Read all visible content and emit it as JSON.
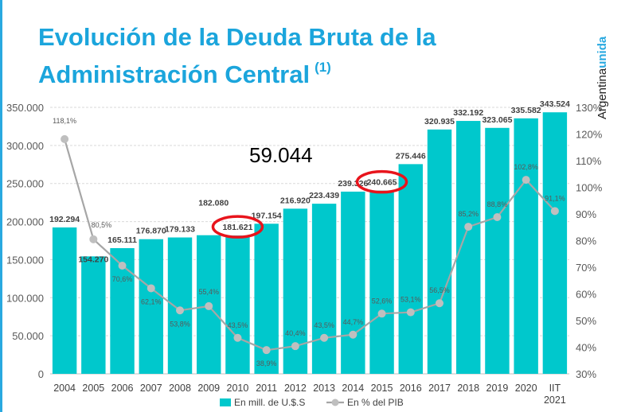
{
  "title_line1": "Evolución de la Deuda Bruta de la",
  "title_line2": "Administración Central",
  "title_note": "(1)",
  "brand": {
    "part1": "Argentina",
    "part2": "unida"
  },
  "annotation": "59.044",
  "colors": {
    "bars": "#00c8cc",
    "line": "#a6a6a6",
    "title": "#1ba5dc",
    "highlight": "#e8141c"
  },
  "chart_data": {
    "type": "bar+line",
    "categories": [
      "2004",
      "2005",
      "2006",
      "2007",
      "2008",
      "2009",
      "2010",
      "2011",
      "2012",
      "2013",
      "2014",
      "2015",
      "2016",
      "2017",
      "2018",
      "2019",
      "2020",
      "IIT 2021"
    ],
    "series": [
      {
        "name": "En mill. de U.$.S",
        "type": "bar",
        "axis": "left",
        "values": [
          192294,
          154270,
          165111,
          176870,
          179133,
          182080,
          181621,
          197154,
          216920,
          223439,
          239326,
          240665,
          275446,
          320935,
          332192,
          323065,
          335582,
          343524
        ],
        "labels": [
          "192.294",
          "154.270",
          "165.111",
          "176.870",
          "179.133",
          "182.080",
          "181.621",
          "197.154",
          "216.920",
          "223.439",
          "239.326",
          "240.665",
          "275.446",
          "320.935",
          "332.192",
          "323.065",
          "335.582",
          "343.524"
        ]
      },
      {
        "name": "En % del PIB",
        "type": "line",
        "axis": "right",
        "values": [
          118.1,
          80.5,
          70.6,
          62.1,
          53.8,
          55.4,
          43.5,
          38.9,
          40.4,
          43.5,
          44.7,
          52.6,
          53.1,
          56.5,
          85.2,
          88.8,
          102.8,
          91.1
        ],
        "labels": [
          "118,1%",
          "80,5%",
          "70,6%",
          "62,1%",
          "53,8%",
          "55,4%",
          "43,5%",
          "38,9%",
          "40,4%",
          "43,5%",
          "44,7%",
          "52,6%",
          "53,1%",
          "56,5%",
          "85,2%",
          "88,8%",
          "102,8%",
          "91,1%"
        ]
      }
    ],
    "left_axis": {
      "range": [
        0,
        350000
      ],
      "ticks": [
        "0",
        "50.000",
        "100.000",
        "150.000",
        "200.000",
        "250.000",
        "300.000",
        "350.000"
      ]
    },
    "right_axis": {
      "range": [
        30,
        130
      ],
      "ticks": [
        "30%",
        "40%",
        "50%",
        "60%",
        "70%",
        "80%",
        "90%",
        "100%",
        "110%",
        "120%",
        "130%"
      ]
    },
    "highlighted": [
      "2010",
      "2015"
    ],
    "grid": true,
    "legend": "bottom"
  }
}
